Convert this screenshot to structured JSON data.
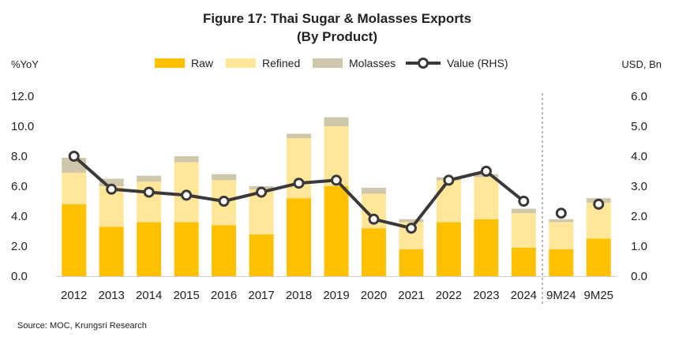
{
  "chart_data": {
    "type": "bar",
    "title": "Figure 17: Thai Sugar & Molasses Exports",
    "subtitle": "(By Product)",
    "ylabel_left": "%YoY",
    "ylabel_right": "USD, Bn",
    "ylim_left": [
      0,
      12
    ],
    "ylim_right": [
      0,
      6
    ],
    "yticks_left": [
      "0.0",
      "2.0",
      "4.0",
      "6.0",
      "8.0",
      "10.0",
      "12.0"
    ],
    "yticks_right": [
      "0.0",
      "1.0",
      "2.0",
      "3.0",
      "4.0",
      "5.0",
      "6.0"
    ],
    "categories": [
      "2012",
      "2013",
      "2014",
      "2015",
      "2016",
      "2017",
      "2018",
      "2019",
      "2020",
      "2021",
      "2022",
      "2023",
      "2024",
      "9M24",
      "9M25"
    ],
    "series": [
      {
        "name": "Raw",
        "kind": "stacked-bar",
        "color": "#FFC000",
        "values": [
          4.8,
          3.3,
          3.6,
          3.6,
          3.4,
          2.8,
          5.2,
          6.0,
          3.2,
          1.8,
          3.6,
          3.8,
          1.9,
          1.8,
          2.5
        ]
      },
      {
        "name": "Refined",
        "kind": "stacked-bar",
        "color": "#FFE699",
        "values": [
          2.1,
          2.7,
          2.7,
          4.0,
          3.0,
          3.0,
          4.0,
          4.0,
          2.3,
          1.8,
          2.8,
          2.8,
          2.3,
          1.8,
          2.4
        ]
      },
      {
        "name": "Molasses",
        "kind": "stacked-bar",
        "color": "#CFC7AC",
        "values": [
          1.0,
          0.5,
          0.4,
          0.4,
          0.4,
          0.2,
          0.3,
          0.6,
          0.4,
          0.2,
          0.2,
          0.2,
          0.3,
          0.2,
          0.3
        ]
      },
      {
        "name": "Value (RHS)",
        "kind": "line",
        "axis": "right",
        "color": "#3B3838",
        "values": [
          4.0,
          2.9,
          2.8,
          2.7,
          2.5,
          2.8,
          3.1,
          3.2,
          1.9,
          1.6,
          3.2,
          3.5,
          2.5,
          2.1,
          2.4
        ],
        "segments": [
          [
            0,
            12
          ],
          [
            13,
            13
          ],
          [
            14,
            14
          ]
        ]
      }
    ],
    "separator_after": "2024",
    "source": "Source:  MOC, Krungsri Research"
  }
}
